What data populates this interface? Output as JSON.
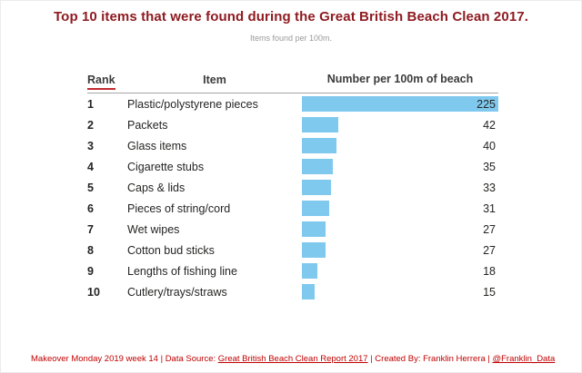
{
  "title": "Top 10 items that were found during the Great British Beach Clean 2017.",
  "subtitle": "Items found per 100m.",
  "table": {
    "headers": {
      "rank": "Rank",
      "item": "Item",
      "value": "Number per 100m of beach"
    }
  },
  "chart_data": {
    "type": "bar",
    "orientation": "horizontal",
    "title": "Top 10 items that were found during the Great British Beach Clean 2017.",
    "subtitle": "Items found per 100m.",
    "value_axis_label": "Number per 100m of beach",
    "max_value": 225,
    "bar_color": "#7FC9EE",
    "legend": "none",
    "grid": false,
    "ranks": [
      1,
      2,
      3,
      4,
      5,
      6,
      7,
      8,
      9,
      10
    ],
    "categories": [
      "Plastic/polystyrene pieces",
      "Packets",
      "Glass items",
      "Cigarette stubs",
      "Caps & lids",
      "Pieces of string/cord",
      "Wet wipes",
      "Cotton bud sticks",
      "Lengths of fishing line",
      "Cutlery/trays/straws"
    ],
    "values": [
      225,
      42,
      40,
      35,
      33,
      31,
      27,
      27,
      18,
      15
    ]
  },
  "footer": {
    "prefix": "Makeover Monday 2019 week 14 | Data Source: ",
    "source_link": "Great British Beach Clean Report 2017",
    "middle": " | Created By: Franklin Herrera | ",
    "handle_link": "@Franklin_Data"
  },
  "colors": {
    "title": "#8E1B21",
    "footer": "#C00000",
    "bar": "#7FC9EE"
  }
}
